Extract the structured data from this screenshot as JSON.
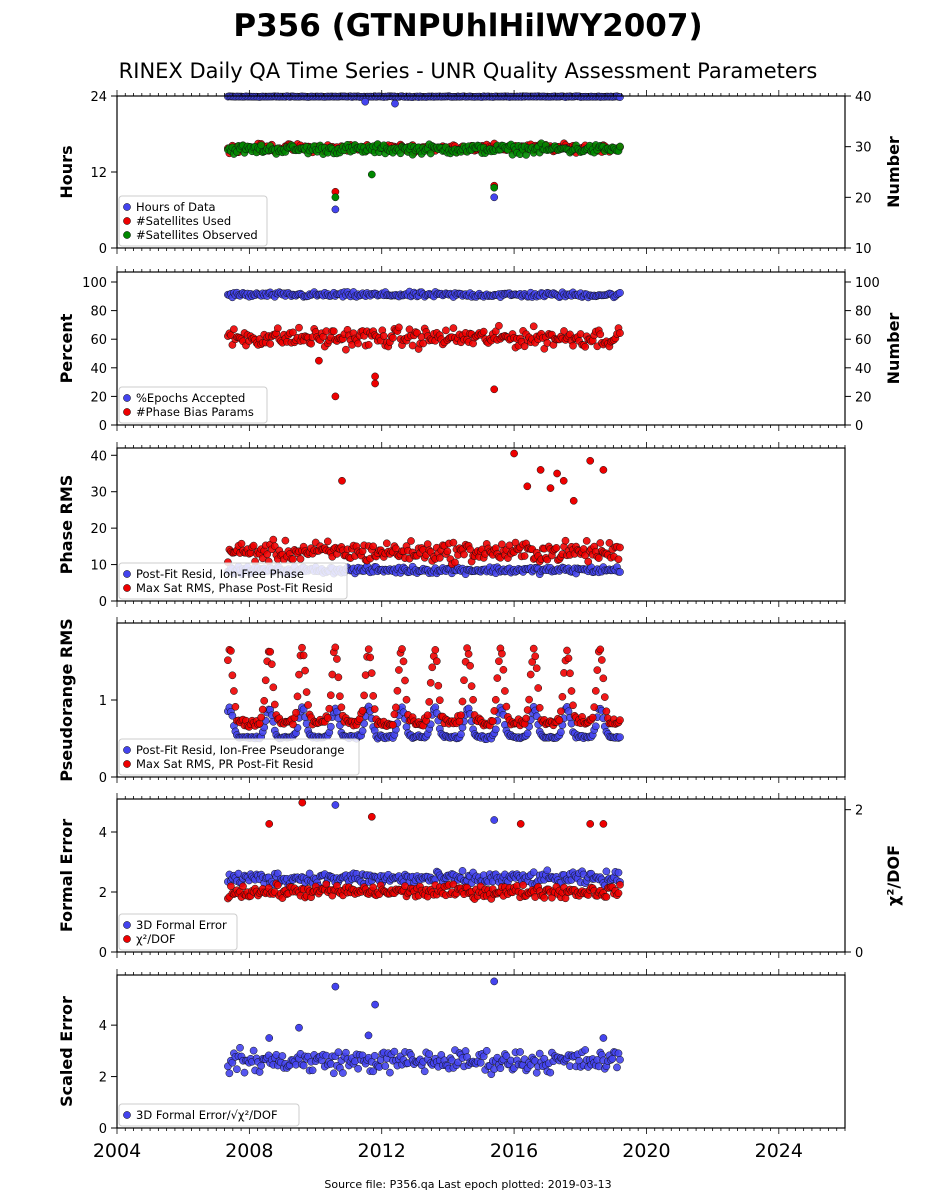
{
  "title": "P356 (GTNPUhlHilWY2007)",
  "subtitle": "RINEX Daily QA Time Series - UNR Quality Assessment Parameters",
  "footer": "Source file: P356.qa Last epoch plotted: 2019-03-13",
  "colors": {
    "blue": "#4444ee",
    "red": "#ee0000",
    "green": "#008800"
  },
  "chart_data": [
    {
      "type": "scatter",
      "ylabel": "Hours",
      "ylabel_right": "Number",
      "ylim": [
        0,
        24
      ],
      "yticks": [
        "0",
        "12",
        "24"
      ],
      "ylim_right": [
        10,
        40
      ],
      "yticks_right": [
        "10",
        "20",
        "30",
        "40"
      ],
      "xlim": [
        2004,
        2026
      ],
      "legend": "lower-left",
      "grid": false,
      "series": [
        {
          "name": "Hours of Data",
          "color": "blue",
          "axis": "left",
          "approx_range": [
            23.8,
            24
          ],
          "outliers": [
            [
              2010.6,
              6.1
            ],
            [
              2015.4,
              8.0
            ],
            [
              2011.5,
              23.1
            ],
            [
              2012.4,
              22.8
            ]
          ]
        },
        {
          "name": "#Satellites Used",
          "color": "red",
          "axis": "right",
          "approx_range": [
            28.5,
            31
          ],
          "outliers": [
            [
              2010.6,
              21.1
            ],
            [
              2015.4,
              22.3
            ],
            [
              2009.8,
              30.0
            ]
          ]
        },
        {
          "name": "#Satellites Observed",
          "color": "green",
          "axis": "right",
          "approx_range": [
            28,
            31
          ],
          "outliers": [
            [
              2010.6,
              20.0
            ],
            [
              2015.4,
              21.9
            ],
            [
              2011.7,
              24.5
            ]
          ]
        }
      ]
    },
    {
      "type": "scatter",
      "ylabel": "Percent",
      "ylabel_right": "Number",
      "ylim": [
        0,
        107
      ],
      "yticks": [
        "0",
        "20",
        "40",
        "60",
        "80",
        "100"
      ],
      "ylim_right": [
        0,
        107
      ],
      "yticks_right": [
        "0",
        "20",
        "40",
        "60",
        "80",
        "100"
      ],
      "xlim": [
        2004,
        2026
      ],
      "legend": "lower-left",
      "grid": false,
      "series": [
        {
          "name": "%Epochs Accepted",
          "color": "blue",
          "axis": "left",
          "approx_range": [
            88,
            94
          ]
        },
        {
          "name": "#Phase Bias Params",
          "color": "red",
          "axis": "right",
          "approx_range": [
            50,
            72
          ],
          "outliers": [
            [
              2010.6,
              20
            ],
            [
              2011.8,
              29
            ],
            [
              2011.8,
              34
            ],
            [
              2015.4,
              25
            ],
            [
              2010.1,
              45
            ]
          ]
        }
      ]
    },
    {
      "type": "scatter",
      "ylabel": "Phase RMS",
      "ylim": [
        0,
        42
      ],
      "yticks": [
        "0",
        "10",
        "20",
        "30",
        "40"
      ],
      "xlim": [
        2004,
        2026
      ],
      "legend": "lower-left",
      "grid": false,
      "series": [
        {
          "name": "Post-Fit Resid, Ion-Free Phase",
          "color": "blue",
          "approx_range": [
            7,
            10
          ]
        },
        {
          "name": "Max Sat RMS, Phase Post-Fit Resid",
          "color": "red",
          "approx_range": [
            9,
            18
          ],
          "outliers": [
            [
              2016.0,
              40.5
            ],
            [
              2016.8,
              36
            ],
            [
              2017.3,
              35
            ],
            [
              2017.5,
              33
            ],
            [
              2018.3,
              38.5
            ],
            [
              2018.7,
              36
            ],
            [
              2010.8,
              33
            ],
            [
              2016.4,
              31.5
            ],
            [
              2017.1,
              31
            ],
            [
              2017.8,
              27.5
            ]
          ]
        }
      ]
    },
    {
      "type": "scatter",
      "ylabel": "Pseudorange RMS",
      "ylim": [
        0,
        2.0
      ],
      "yticks": [
        "0",
        "1"
      ],
      "xlim": [
        2004,
        2026
      ],
      "legend": "lower-left",
      "grid": false,
      "seasonal_peaks": [
        2007.4,
        2008.6,
        2009.6,
        2010.6,
        2011.6,
        2012.6,
        2013.6,
        2014.6,
        2015.6,
        2016.6,
        2017.6,
        2018.6
      ],
      "series": [
        {
          "name": "Post-Fit Resid, Ion-Free Pseudorange",
          "color": "blue",
          "approx_range": [
            0.45,
            1.0
          ]
        },
        {
          "name": "Max Sat RMS, PR Post-Fit Resid",
          "color": "red",
          "approx_range": [
            0.55,
            1.9
          ]
        }
      ]
    },
    {
      "type": "scatter",
      "ylabel": "Formal Error",
      "ylabel_right": "χ²/DOF",
      "ylim": [
        0,
        5.1
      ],
      "yticks": [
        "0",
        "2",
        "4"
      ],
      "ylim_right": [
        0,
        2.15
      ],
      "yticks_right": [
        "0",
        "2"
      ],
      "xlim": [
        2004,
        2026
      ],
      "legend": "lower-left",
      "grid": false,
      "series": [
        {
          "name": "3D Formal Error",
          "color": "blue",
          "axis": "left",
          "approx_range": [
            2.1,
            2.8
          ],
          "outliers": [
            [
              2010.6,
              4.9
            ],
            [
              2015.4,
              4.4
            ]
          ]
        },
        {
          "name": "χ²/DOF",
          "color": "red",
          "axis": "right",
          "approx_range": [
            0.7,
            1.0
          ],
          "outliers": [
            [
              2009.6,
              2.1
            ],
            [
              2011.7,
              1.9
            ],
            [
              2008.6,
              1.8
            ],
            [
              2016.2,
              1.8
            ],
            [
              2018.3,
              1.8
            ],
            [
              2018.7,
              1.8
            ]
          ]
        }
      ]
    },
    {
      "type": "scatter",
      "ylabel": "Scaled Error",
      "ylim": [
        0,
        5.95
      ],
      "yticks": [
        "0",
        "2",
        "4"
      ],
      "xlim": [
        2004,
        2026
      ],
      "xticks": [
        "2004",
        "2008",
        "2012",
        "2016",
        "2020",
        "2024"
      ],
      "legend": "lower-left",
      "grid": false,
      "series": [
        {
          "name": "3D Formal Error/√χ²/DOF",
          "color": "blue",
          "approx_range": [
            1.9,
            3.3
          ],
          "outliers": [
            [
              2010.6,
              5.5
            ],
            [
              2015.4,
              5.7
            ],
            [
              2011.8,
              4.8
            ],
            [
              2009.5,
              3.9
            ],
            [
              2011.6,
              3.6
            ],
            [
              2008.6,
              3.5
            ],
            [
              2018.7,
              3.5
            ]
          ]
        }
      ]
    }
  ]
}
